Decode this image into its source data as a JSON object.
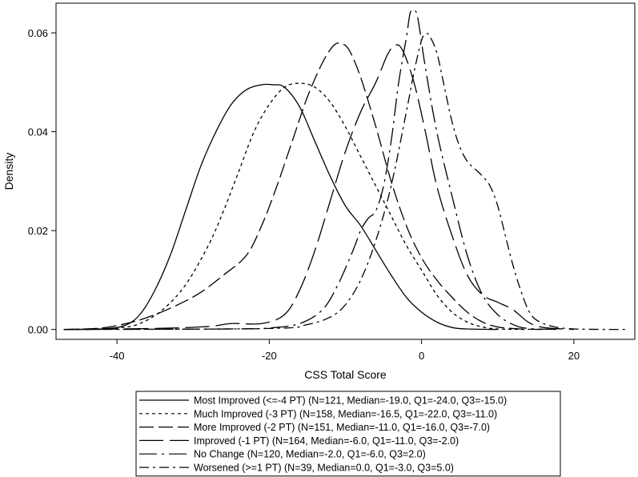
{
  "chart_data": {
    "type": "line",
    "xlabel": "CSS Total Score",
    "ylabel": "Density",
    "xlim": [
      -48,
      28
    ],
    "ylim": [
      -0.002,
      0.066
    ],
    "x_ticks": [
      -40,
      -20,
      0,
      20
    ],
    "x_tick_labels": [
      "-40",
      "-20",
      "0",
      "20"
    ],
    "y_ticks": [
      0.0,
      0.02,
      0.04,
      0.06
    ],
    "y_tick_labels": [
      "0.00",
      "0.02",
      "0.04",
      "0.06"
    ],
    "grid": false,
    "legend_position": "bottom",
    "series": [
      {
        "name": "Most Improved (<=-4 PT) (N=121, Median=-19.0, Q1=-24.0, Q3=-15.0)",
        "dash": "none",
        "points": [
          [
            -47,
            0
          ],
          [
            -42,
            0.0001
          ],
          [
            -39,
            0.0008
          ],
          [
            -37,
            0.003
          ],
          [
            -35,
            0.008
          ],
          [
            -33,
            0.015
          ],
          [
            -31,
            0.024
          ],
          [
            -29,
            0.033
          ],
          [
            -27,
            0.04
          ],
          [
            -25,
            0.0455
          ],
          [
            -23,
            0.0485
          ],
          [
            -21,
            0.0495
          ],
          [
            -19.5,
            0.0495
          ],
          [
            -18,
            0.049
          ],
          [
            -16,
            0.045
          ],
          [
            -14,
            0.038
          ],
          [
            -12,
            0.031
          ],
          [
            -10,
            0.025
          ],
          [
            -8,
            0.021
          ],
          [
            -6,
            0.016
          ],
          [
            -4,
            0.011
          ],
          [
            -2,
            0.0065
          ],
          [
            0,
            0.0035
          ],
          [
            2,
            0.0015
          ],
          [
            4,
            0.0004
          ],
          [
            6,
            0.0001
          ],
          [
            10,
            0
          ]
        ]
      },
      {
        "name": "Much Improved (-3 PT) (N=158, Median=-16.5, Q1=-22.0, Q3=-11.0)",
        "dash": "4,4",
        "points": [
          [
            -47,
            0
          ],
          [
            -40,
            0.0003
          ],
          [
            -37,
            0.0012
          ],
          [
            -34,
            0.004
          ],
          [
            -31,
            0.009
          ],
          [
            -28,
            0.017
          ],
          [
            -26,
            0.024
          ],
          [
            -24,
            0.032
          ],
          [
            -22,
            0.04
          ],
          [
            -20,
            0.0455
          ],
          [
            -18,
            0.049
          ],
          [
            -16,
            0.0498
          ],
          [
            -14,
            0.049
          ],
          [
            -12,
            0.046
          ],
          [
            -10,
            0.041
          ],
          [
            -8,
            0.035
          ],
          [
            -6,
            0.029
          ],
          [
            -4,
            0.023
          ],
          [
            -2,
            0.017
          ],
          [
            0,
            0.012
          ],
          [
            2,
            0.007
          ],
          [
            4,
            0.0035
          ],
          [
            6,
            0.0015
          ],
          [
            8,
            0.0005
          ],
          [
            10,
            0.0001
          ],
          [
            14,
            0
          ]
        ]
      },
      {
        "name": "More Improved (-2 PT) (N=151, Median=-11.0, Q1=-16.0, Q3=-7.0)",
        "dash": "18,6",
        "points": [
          [
            -47,
            0
          ],
          [
            -42,
            0.0003
          ],
          [
            -38,
            0.0015
          ],
          [
            -35,
            0.003
          ],
          [
            -32,
            0.005
          ],
          [
            -29,
            0.0075
          ],
          [
            -26,
            0.011
          ],
          [
            -23,
            0.015
          ],
          [
            -21,
            0.021
          ],
          [
            -19,
            0.029
          ],
          [
            -17,
            0.038
          ],
          [
            -15,
            0.047
          ],
          [
            -13,
            0.054
          ],
          [
            -11.5,
            0.0575
          ],
          [
            -10.5,
            0.0578
          ],
          [
            -9.5,
            0.0565
          ],
          [
            -8,
            0.051
          ],
          [
            -6,
            0.041
          ],
          [
            -4,
            0.03
          ],
          [
            -2,
            0.021
          ],
          [
            0,
            0.0145
          ],
          [
            2,
            0.01
          ],
          [
            4,
            0.0065
          ],
          [
            6,
            0.0035
          ],
          [
            8,
            0.0015
          ],
          [
            10,
            0.0005
          ],
          [
            13,
            0.0001
          ],
          [
            16,
            0
          ]
        ]
      },
      {
        "name": "Improved (-1 PT) (N=164, Median=-6.0, Q1=-11.0, Q3=-2.0)",
        "dash": "30,8",
        "points": [
          [
            -47,
            0
          ],
          [
            -35,
            0.0002
          ],
          [
            -28,
            0.0006
          ],
          [
            -25,
            0.0012
          ],
          [
            -21,
            0.0012
          ],
          [
            -18,
            0.003
          ],
          [
            -16,
            0.008
          ],
          [
            -14,
            0.016
          ],
          [
            -12,
            0.026
          ],
          [
            -10,
            0.036
          ],
          [
            -8,
            0.044
          ],
          [
            -6,
            0.05
          ],
          [
            -4.5,
            0.0555
          ],
          [
            -3.5,
            0.0575
          ],
          [
            -2.5,
            0.0565
          ],
          [
            -1,
            0.05
          ],
          [
            0.5,
            0.04
          ],
          [
            2,
            0.029
          ],
          [
            4,
            0.019
          ],
          [
            6,
            0.011
          ],
          [
            8,
            0.007
          ],
          [
            10,
            0.0055
          ],
          [
            12,
            0.004
          ],
          [
            14,
            0.0015
          ],
          [
            16,
            0.0004
          ],
          [
            20,
            0
          ]
        ]
      },
      {
        "name": "No Change (N=120, Median=-2.0, Q1=-6.0, Q3=2.0)",
        "dash": "22,6,3,6",
        "points": [
          [
            -47,
            0
          ],
          [
            -25,
            0.0001
          ],
          [
            -20,
            0.0003
          ],
          [
            -16,
            0.0012
          ],
          [
            -13,
            0.004
          ],
          [
            -11,
            0.009
          ],
          [
            -9,
            0.016
          ],
          [
            -8,
            0.02
          ],
          [
            -7,
            0.0225
          ],
          [
            -6,
            0.024
          ],
          [
            -5,
            0.029
          ],
          [
            -4,
            0.038
          ],
          [
            -3,
            0.05
          ],
          [
            -2,
            0.059
          ],
          [
            -1.5,
            0.064
          ],
          [
            -1,
            0.0645
          ],
          [
            -0.5,
            0.063
          ],
          [
            0.5,
            0.053
          ],
          [
            2,
            0.04
          ],
          [
            4,
            0.027
          ],
          [
            6,
            0.015
          ],
          [
            8,
            0.007
          ],
          [
            10,
            0.003
          ],
          [
            12,
            0.001
          ],
          [
            14,
            0.0002
          ],
          [
            18,
            0
          ]
        ]
      },
      {
        "name": "Worsened (>=1 PT) (N=39, Median=0.0, Q1=-3.0, Q3=5.0)",
        "dash": "12,5,3,5",
        "points": [
          [
            -47,
            0
          ],
          [
            -20,
            0.0002
          ],
          [
            -15,
            0.001
          ],
          [
            -12,
            0.0025
          ],
          [
            -10,
            0.005
          ],
          [
            -8,
            0.01
          ],
          [
            -6,
            0.018
          ],
          [
            -4,
            0.029
          ],
          [
            -2,
            0.044
          ],
          [
            -1,
            0.052
          ],
          [
            0,
            0.0585
          ],
          [
            0.5,
            0.0597
          ],
          [
            1,
            0.0595
          ],
          [
            2,
            0.056
          ],
          [
            3,
            0.049
          ],
          [
            4,
            0.042
          ],
          [
            5,
            0.037
          ],
          [
            6,
            0.034
          ],
          [
            7,
            0.0325
          ],
          [
            8,
            0.031
          ],
          [
            9,
            0.029
          ],
          [
            10,
            0.025
          ],
          [
            11,
            0.019
          ],
          [
            12,
            0.013
          ],
          [
            13,
            0.008
          ],
          [
            14,
            0.004
          ],
          [
            15,
            0.002
          ],
          [
            17,
            0.0007
          ],
          [
            20,
            0.0001
          ],
          [
            27,
            0
          ]
        ]
      }
    ]
  }
}
